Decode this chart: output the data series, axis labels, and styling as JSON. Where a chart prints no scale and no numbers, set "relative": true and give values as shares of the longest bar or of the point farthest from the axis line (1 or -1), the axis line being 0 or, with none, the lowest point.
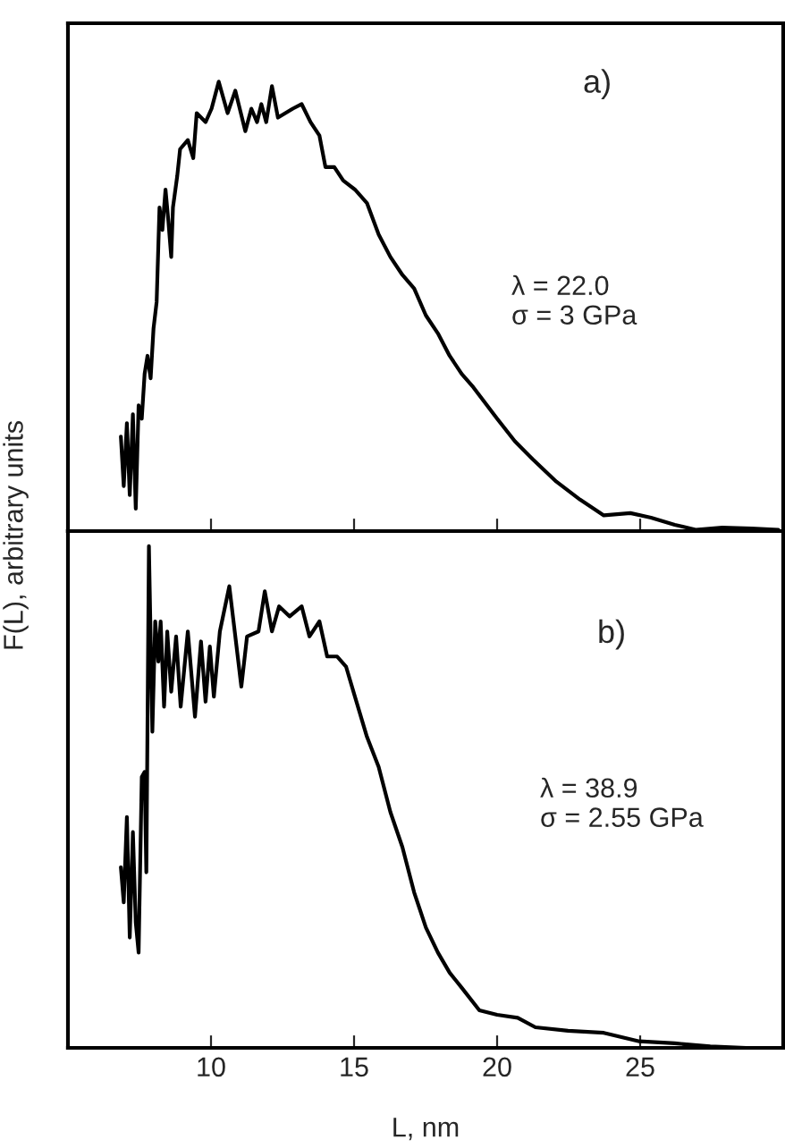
{
  "chart_data": [
    {
      "type": "line",
      "relative": true,
      "ylabel": "F(L), arbitrary units",
      "xlim": [
        5,
        30
      ],
      "xticks": [
        10,
        15,
        20,
        25
      ],
      "tick_labels": false,
      "annotations": [
        "a)",
        "λ = 22.0\nσ = 3 GPa"
      ],
      "x": [
        6.85,
        6.95,
        7.06,
        7.16,
        7.27,
        7.37,
        7.47,
        7.58,
        7.68,
        7.78,
        7.89,
        7.99,
        8.1,
        8.2,
        8.3,
        8.41,
        8.51,
        8.61,
        8.67,
        8.82,
        8.92,
        9.19,
        9.38,
        9.5,
        9.81,
        10.02,
        10.27,
        10.58,
        10.85,
        11.2,
        11.41,
        11.61,
        11.76,
        11.93,
        12.13,
        12.34,
        12.86,
        13.17,
        13.48,
        13.79,
        14.0,
        14.31,
        14.62,
        15.03,
        15.45,
        15.86,
        16.27,
        16.69,
        17.1,
        17.51,
        17.93,
        18.34,
        18.76,
        19.17,
        20.0,
        20.62,
        21.24,
        22.07,
        22.9,
        23.73,
        24.66,
        25.38,
        26.21,
        26.94,
        27.87,
        28.9,
        29.83
      ],
      "series": [
        {
          "color": "#000000",
          "values": [
            0.21,
            0.1,
            0.24,
            0.08,
            0.26,
            0.05,
            0.28,
            0.25,
            0.35,
            0.39,
            0.34,
            0.45,
            0.51,
            0.72,
            0.67,
            0.76,
            0.69,
            0.61,
            0.72,
            0.79,
            0.85,
            0.87,
            0.83,
            0.93,
            0.91,
            0.94,
            1.0,
            0.93,
            0.98,
            0.89,
            0.94,
            0.91,
            0.95,
            0.91,
            0.99,
            0.92,
            0.94,
            0.95,
            0.91,
            0.88,
            0.81,
            0.81,
            0.78,
            0.76,
            0.73,
            0.66,
            0.61,
            0.57,
            0.54,
            0.48,
            0.44,
            0.39,
            0.35,
            0.32,
            0.25,
            0.2,
            0.16,
            0.11,
            0.07,
            0.035,
            0.04,
            0.03,
            0.014,
            0.003,
            0.008,
            0.006,
            0.003
          ]
        }
      ]
    },
    {
      "type": "line",
      "relative": true,
      "xlabel": "L, nm",
      "xlim": [
        5,
        30
      ],
      "xticks": [
        10,
        15,
        20,
        25
      ],
      "tick_labels": "x",
      "annotations": [
        "b)",
        "λ = 38.9\nσ = 2.55 GPa"
      ],
      "x": [
        6.85,
        6.95,
        7.06,
        7.16,
        7.27,
        7.37,
        7.47,
        7.58,
        7.68,
        7.74,
        7.83,
        7.95,
        8.05,
        8.16,
        8.24,
        8.36,
        8.47,
        8.61,
        8.78,
        8.94,
        9.19,
        9.44,
        9.65,
        9.81,
        9.96,
        10.1,
        10.31,
        10.64,
        10.85,
        11.06,
        11.26,
        11.66,
        11.88,
        12.13,
        12.38,
        12.75,
        13.17,
        13.44,
        13.79,
        14.06,
        14.41,
        14.72,
        15.03,
        15.45,
        15.86,
        16.27,
        16.69,
        17.1,
        17.51,
        17.93,
        18.34,
        18.76,
        19.38,
        20.0,
        20.72,
        21.34,
        22.48,
        23.73,
        24.97,
        26.21,
        27.45,
        28.7,
        29.83
      ],
      "series": [
        {
          "color": "#000000",
          "values": [
            0.36,
            0.29,
            0.46,
            0.22,
            0.43,
            0.25,
            0.19,
            0.54,
            0.55,
            0.35,
            1.0,
            0.63,
            0.85,
            0.77,
            0.85,
            0.68,
            0.83,
            0.71,
            0.82,
            0.68,
            0.83,
            0.66,
            0.81,
            0.69,
            0.8,
            0.7,
            0.83,
            0.92,
            0.82,
            0.72,
            0.82,
            0.83,
            0.91,
            0.83,
            0.88,
            0.86,
            0.88,
            0.82,
            0.85,
            0.78,
            0.78,
            0.76,
            0.7,
            0.62,
            0.56,
            0.47,
            0.4,
            0.31,
            0.24,
            0.19,
            0.15,
            0.12,
            0.075,
            0.066,
            0.06,
            0.041,
            0.034,
            0.03,
            0.013,
            0.009,
            0.003,
            0.0,
            0.0
          ]
        }
      ]
    }
  ]
}
